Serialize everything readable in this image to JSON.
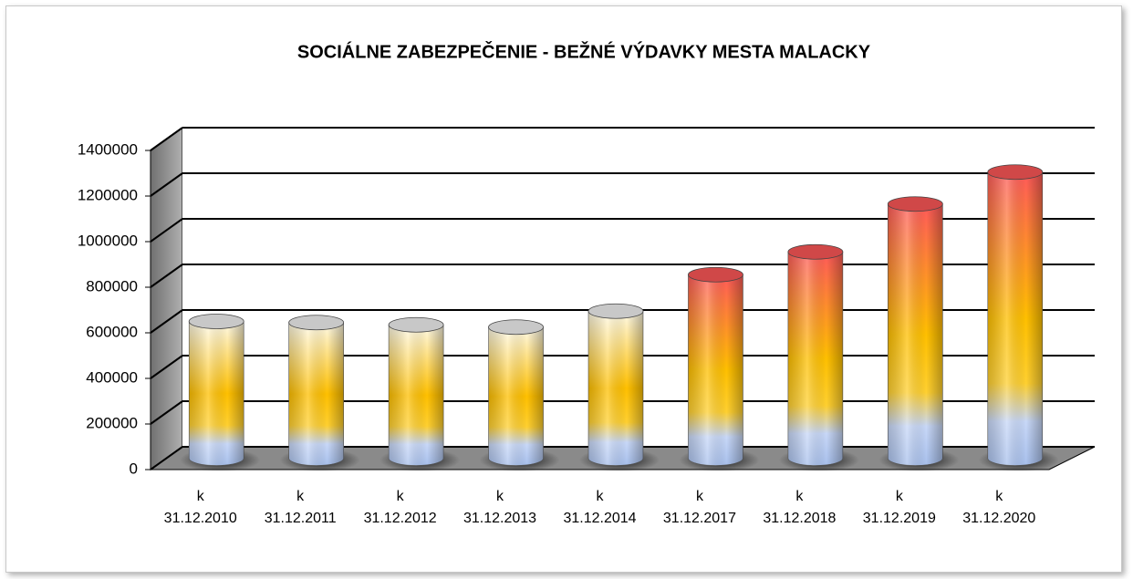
{
  "chart_data": {
    "type": "bar3d",
    "title": "SOCIÁLNE ZABEZPEČENIE  - BEŽNÉ VÝDAVKY MESTA MALACKY",
    "categories": [
      "k 31.12.2010",
      "k 31.12.2011",
      "k 31.12.2012",
      "k 31.12.2013",
      "k 31.12.2014",
      "k 31.12.2017",
      "k 31.12.2018",
      "k 31.12.2019",
      "k 31.12.2020"
    ],
    "values": [
      600000,
      595000,
      585000,
      575000,
      645000,
      805000,
      905000,
      1115000,
      1255000
    ],
    "colors": [
      "#fffbea",
      "#fffbea",
      "#fffbea",
      "#fffbea",
      "#fffbea",
      "#ff5a5a",
      "#ff5a5a",
      "#ff5a5a",
      "#ff5a5a"
    ],
    "ylim": [
      0,
      1400000
    ],
    "yticks": [
      0,
      200000,
      400000,
      600000,
      800000,
      1000000,
      1200000,
      1400000
    ],
    "grid": true
  }
}
